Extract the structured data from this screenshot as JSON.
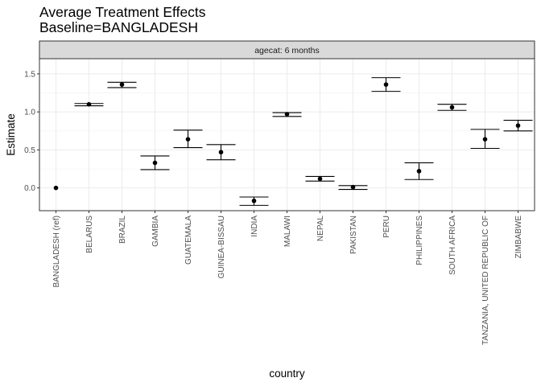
{
  "chart_data": {
    "type": "scatter",
    "title": "Average Treatment Effects",
    "subtitle": "Baseline=BANGLADESH",
    "facet_label": "agecat: 6 months",
    "xlabel": "country",
    "ylabel": "Estimate",
    "ylim": [
      -0.3,
      1.7
    ],
    "yticks": [
      "0.0",
      "0.5",
      "1.0",
      "1.5"
    ],
    "ytick_values": [
      0.0,
      0.5,
      1.0,
      1.5
    ],
    "grid": true,
    "legend": "none",
    "categories": [
      "BANGLADESH (ref)",
      "BELARUS",
      "BRAZIL",
      "GAMBIA",
      "GUATEMALA",
      "GUINEA-BISSAU",
      "INDIA",
      "MALAWI",
      "NEPAL",
      "PAKISTAN",
      "PERU",
      "PHILIPPINES",
      "SOUTH AFRICA",
      "TANZANIA, UNITED REPUBLIC OF",
      "ZIMBABWE"
    ],
    "estimates": [
      0.0,
      1.1,
      1.36,
      0.33,
      0.64,
      0.47,
      -0.17,
      0.97,
      0.12,
      0.01,
      1.36,
      0.22,
      1.06,
      0.64,
      0.82
    ],
    "ci_lower": [
      null,
      1.08,
      1.32,
      0.24,
      0.53,
      0.37,
      -0.23,
      0.94,
      0.09,
      -0.02,
      1.27,
      0.11,
      1.02,
      0.52,
      0.75
    ],
    "ci_upper": [
      null,
      1.11,
      1.39,
      0.42,
      0.76,
      0.57,
      -0.12,
      0.99,
      0.15,
      0.03,
      1.45,
      0.33,
      1.1,
      0.77,
      0.89
    ]
  }
}
